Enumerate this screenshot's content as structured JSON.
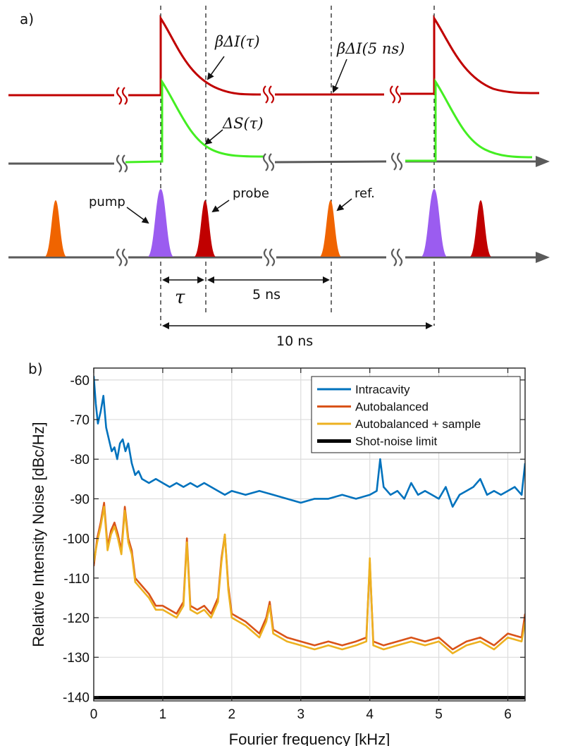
{
  "panel_a": {
    "label": "a)",
    "intensity_label": "βΔI(τ)",
    "intensity_ref_label": "βΔI(5 ns)",
    "signal_label": "ΔS(τ)",
    "pump_label": "pump",
    "probe_label": "probe",
    "ref_label": "ref.",
    "tau_label": "τ",
    "delay_label": "5 ns",
    "period_label": "10 ns",
    "colors": {
      "intensity": "#c00000",
      "signal": "#44ee22",
      "pump": "#9b5cf0",
      "probe": "#c00000",
      "ref": "#f06400",
      "axis": "#5a5a5a"
    }
  },
  "chart_data": {
    "panel_label": "b)",
    "type": "line",
    "xlabel": "Fourier frequency [kHz]",
    "ylabel": "Relative Intensity Noise [dBc/Hz]",
    "xlim": [
      0,
      6.25
    ],
    "ylim": [
      -141,
      -57
    ],
    "xticks": [
      0,
      1,
      2,
      3,
      4,
      5,
      6
    ],
    "yticks": [
      -60,
      -70,
      -80,
      -90,
      -100,
      -110,
      -120,
      -130,
      -140
    ],
    "grid": true,
    "legend_position": "top-right",
    "series": [
      {
        "name": "Intracavity",
        "color": "#0072bd",
        "x": [
          0,
          0.03,
          0.06,
          0.1,
          0.14,
          0.18,
          0.22,
          0.26,
          0.3,
          0.34,
          0.38,
          0.42,
          0.46,
          0.5,
          0.55,
          0.6,
          0.65,
          0.7,
          0.8,
          0.9,
          1.0,
          1.1,
          1.2,
          1.3,
          1.4,
          1.5,
          1.6,
          1.7,
          1.8,
          1.9,
          2.0,
          2.2,
          2.4,
          2.6,
          2.8,
          3.0,
          3.2,
          3.4,
          3.6,
          3.8,
          4.0,
          4.1,
          4.15,
          4.2,
          4.3,
          4.4,
          4.5,
          4.6,
          4.7,
          4.8,
          4.9,
          5.0,
          5.1,
          5.2,
          5.3,
          5.4,
          5.5,
          5.6,
          5.7,
          5.8,
          5.9,
          6.0,
          6.1,
          6.2,
          6.25
        ],
        "values": [
          -59,
          -66,
          -71,
          -68,
          -64,
          -72,
          -75,
          -78,
          -77,
          -80,
          -76,
          -75,
          -78,
          -76,
          -81,
          -84,
          -83,
          -85,
          -86,
          -85,
          -86,
          -87,
          -86,
          -87,
          -86,
          -87,
          -86,
          -87,
          -88,
          -89,
          -88,
          -89,
          -88,
          -89,
          -90,
          -91,
          -90,
          -90,
          -89,
          -90,
          -89,
          -88,
          -80,
          -87,
          -89,
          -88,
          -90,
          -86,
          -89,
          -88,
          -89,
          -90,
          -87,
          -92,
          -89,
          -88,
          -87,
          -85,
          -89,
          -88,
          -89,
          -88,
          -87,
          -89,
          -81
        ]
      },
      {
        "name": "Autobalanced",
        "color": "#d95319",
        "x": [
          0,
          0.05,
          0.1,
          0.15,
          0.2,
          0.25,
          0.3,
          0.35,
          0.4,
          0.45,
          0.5,
          0.55,
          0.6,
          0.7,
          0.8,
          0.9,
          1.0,
          1.1,
          1.2,
          1.3,
          1.35,
          1.4,
          1.5,
          1.6,
          1.7,
          1.8,
          1.85,
          1.9,
          1.95,
          2.0,
          2.2,
          2.4,
          2.5,
          2.55,
          2.6,
          2.8,
          3.0,
          3.2,
          3.4,
          3.6,
          3.8,
          3.95,
          4.0,
          4.05,
          4.2,
          4.4,
          4.6,
          4.8,
          5.0,
          5.2,
          5.4,
          5.6,
          5.8,
          6.0,
          6.2,
          6.25
        ],
        "values": [
          -107,
          -100,
          -96,
          -91,
          -102,
          -98,
          -96,
          -99,
          -103,
          -92,
          -100,
          -103,
          -110,
          -112,
          -114,
          -117,
          -117,
          -118,
          -119,
          -116,
          -100,
          -117,
          -118,
          -117,
          -119,
          -115,
          -105,
          -99,
          -112,
          -119,
          -121,
          -124,
          -120,
          -116,
          -123,
          -125,
          -126,
          -127,
          -126,
          -127,
          -126,
          -125,
          -106,
          -126,
          -127,
          -126,
          -125,
          -126,
          -125,
          -128,
          -126,
          -125,
          -127,
          -124,
          -125,
          -119
        ]
      },
      {
        "name": "Autobalanced + sample",
        "color": "#edb120",
        "x": [
          0,
          0.05,
          0.1,
          0.15,
          0.2,
          0.25,
          0.3,
          0.35,
          0.4,
          0.45,
          0.5,
          0.55,
          0.6,
          0.7,
          0.8,
          0.9,
          1.0,
          1.1,
          1.2,
          1.3,
          1.35,
          1.4,
          1.5,
          1.6,
          1.7,
          1.8,
          1.85,
          1.9,
          1.95,
          2.0,
          2.2,
          2.4,
          2.5,
          2.55,
          2.6,
          2.8,
          3.0,
          3.2,
          3.4,
          3.6,
          3.8,
          3.95,
          4.0,
          4.05,
          4.2,
          4.4,
          4.6,
          4.8,
          5.0,
          5.2,
          5.4,
          5.6,
          5.8,
          6.0,
          6.2,
          6.25
        ],
        "values": [
          -106,
          -101,
          -97,
          -92,
          -103,
          -99,
          -97,
          -100,
          -104,
          -93,
          -101,
          -104,
          -111,
          -113,
          -115,
          -118,
          -118,
          -119,
          -120,
          -117,
          -101,
          -118,
          -119,
          -118,
          -120,
          -116,
          -106,
          -99,
          -113,
          -120,
          -122,
          -125,
          -121,
          -117,
          -124,
          -126,
          -127,
          -128,
          -127,
          -128,
          -127,
          -126,
          -105,
          -127,
          -128,
          -127,
          -126,
          -127,
          -126,
          -129,
          -127,
          -126,
          -128,
          -125,
          -126,
          -121
        ]
      },
      {
        "name": "Shot-noise limit",
        "color": "#000000",
        "x": [
          0,
          6.25
        ],
        "values": [
          -140.2,
          -140.2
        ]
      }
    ]
  }
}
